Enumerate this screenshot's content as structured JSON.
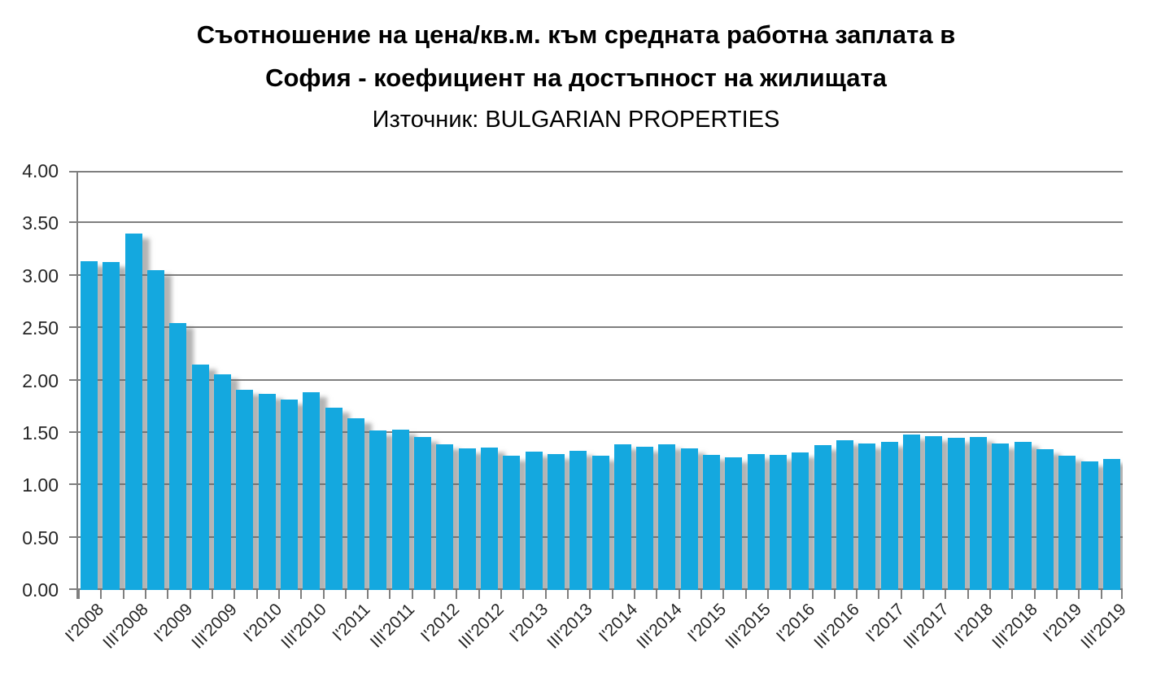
{
  "title": {
    "line1": "Съотношение на цена/кв.м. към средната работна заплата в",
    "line2": "София - коефициент на достъпност на жилищата",
    "source_line": "Източник: BULGARIAN PROPERTIES"
  },
  "chart_data": {
    "type": "bar",
    "title": "Съотношение на цена/кв.м. към средната работна заплата в София - коефициент на достъпност на жилищата",
    "subtitle": "Източник: BULGARIAN PROPERTIES",
    "categories": [
      "I'2008",
      "II'2008",
      "III'2008",
      "IV'2008",
      "I'2009",
      "II'2009",
      "III'2009",
      "IV'2009",
      "I'2010",
      "II'2010",
      "III'2010",
      "IV'2010",
      "I'2011",
      "II'2011",
      "III'2011",
      "IV'2011",
      "I'2012",
      "II'2012",
      "III'2012",
      "IV'2012",
      "I'2013",
      "II'2013",
      "III'2013",
      "IV'2013",
      "I'2014",
      "II'2014",
      "III'2014",
      "IV'2014",
      "I'2015",
      "II'2015",
      "III'2015",
      "IV'2015",
      "I'2016",
      "II'2016",
      "III'2016",
      "IV'2016",
      "I'2017",
      "II'2017",
      "III'2017",
      "IV'2017",
      "I'2018",
      "II'2018",
      "III'2018",
      "IV'2018",
      "I'2019",
      "II'2019",
      "III'2019"
    ],
    "values": [
      3.14,
      3.13,
      3.4,
      3.05,
      2.55,
      2.15,
      2.06,
      1.91,
      1.87,
      1.82,
      1.89,
      1.74,
      1.64,
      1.52,
      1.53,
      1.46,
      1.39,
      1.35,
      1.36,
      1.28,
      1.32,
      1.3,
      1.33,
      1.28,
      1.39,
      1.37,
      1.39,
      1.35,
      1.29,
      1.27,
      1.3,
      1.29,
      1.31,
      1.38,
      1.43,
      1.4,
      1.41,
      1.48,
      1.47,
      1.45,
      1.46,
      1.4,
      1.41,
      1.34,
      1.28,
      1.23,
      1.25
    ],
    "x_label_every": 2,
    "x_label_rotation_deg": 45,
    "xlabel": "",
    "ylabel": "",
    "ylim": [
      0,
      4
    ],
    "y_tick_step": 0.5,
    "y_tick_decimals": 2,
    "grid": true,
    "legend": false,
    "bar_color": "#14a8df",
    "gridline_color": "#7f7f7f",
    "axis_text_color": "#262626"
  }
}
